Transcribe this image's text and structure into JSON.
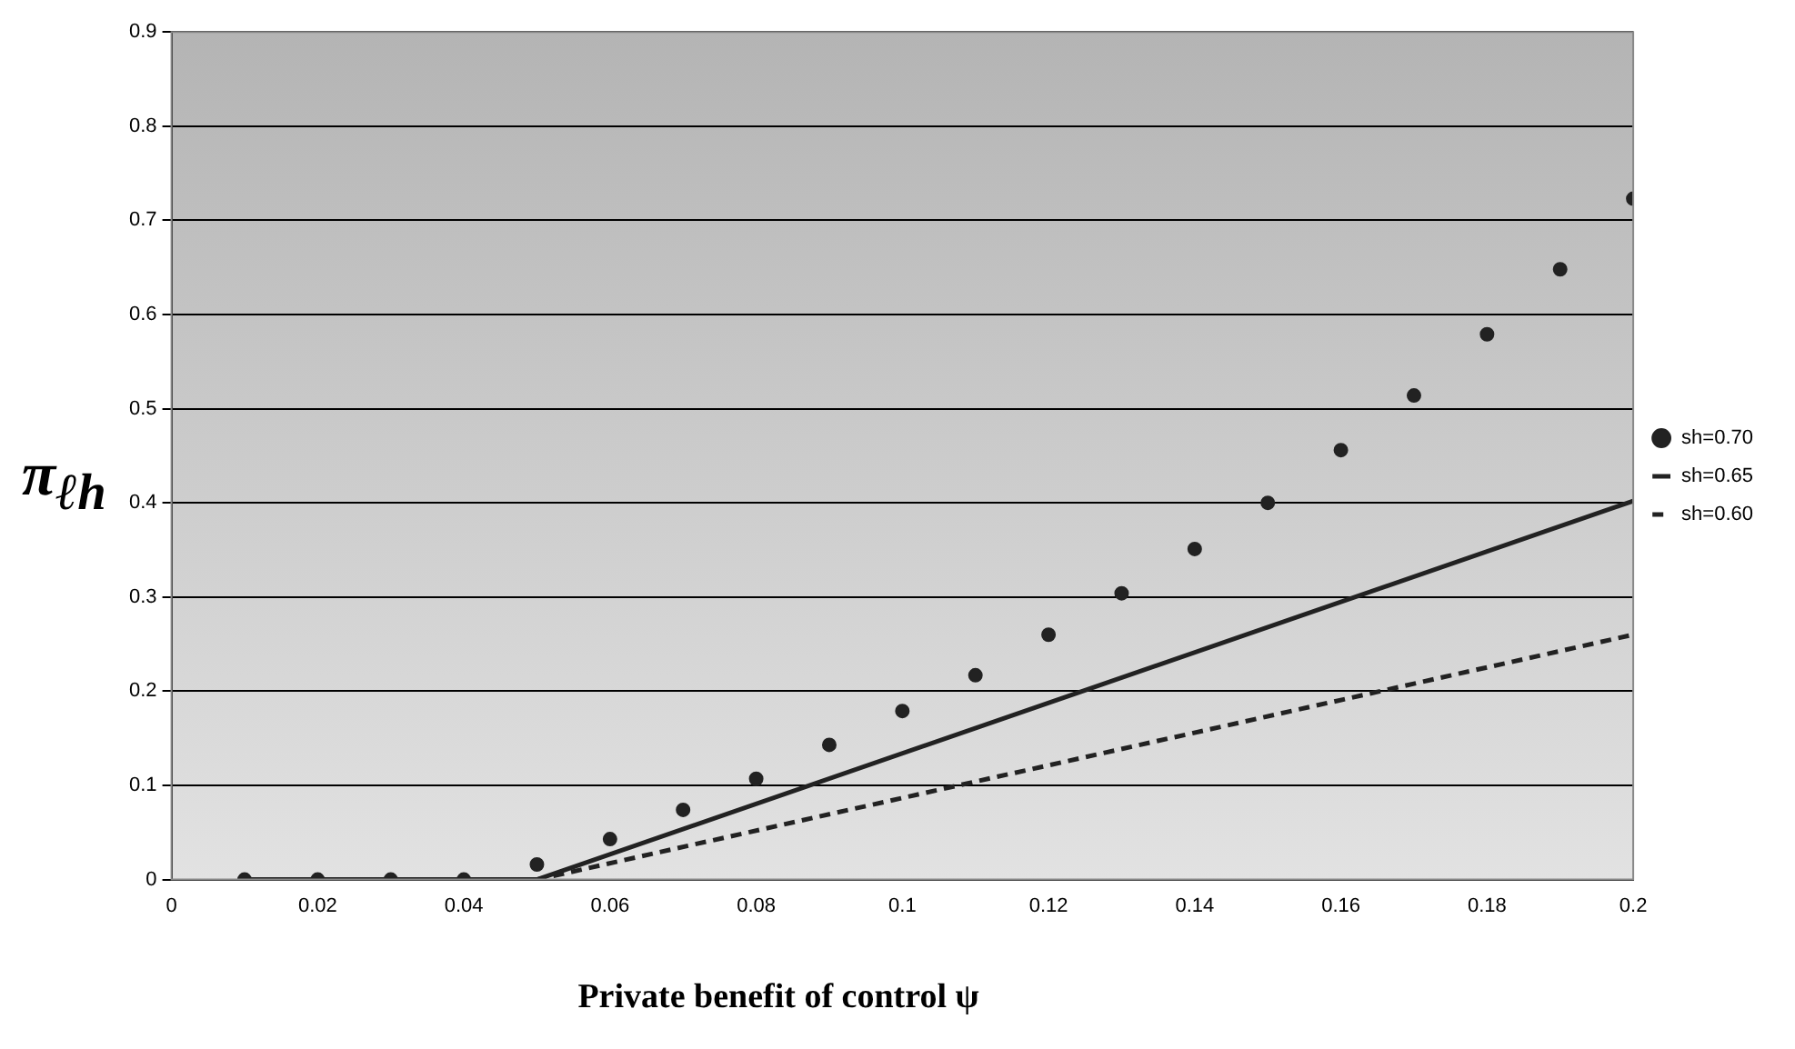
{
  "chart_data": {
    "type": "scatter",
    "xlabel": "Private benefit of control ψ",
    "ylabel": "π$_{ℓh}$",
    "xlim": [
      0,
      0.2
    ],
    "xticks": [
      0,
      0.02,
      0.04,
      0.06,
      0.08,
      0.1,
      0.12,
      0.14,
      0.16,
      0.18,
      0.2
    ],
    "ylim": [
      0,
      0.9
    ],
    "yticks": [
      0,
      0.1,
      0.2,
      0.3,
      0.4,
      0.5,
      0.6,
      0.7,
      0.8,
      0.9
    ],
    "grid": "y",
    "legend": "right",
    "series": [
      {
        "name": "sh=0.70",
        "type": "scatter",
        "marker": "circle",
        "color": "#222222",
        "x": [
          0.01,
          0.02,
          0.03,
          0.04,
          0.05,
          0.06,
          0.07,
          0.08,
          0.09,
          0.1,
          0.11,
          0.12,
          0.13,
          0.14,
          0.15,
          0.16,
          0.17,
          0.18,
          0.19,
          0.2
        ],
        "values": [
          0,
          0,
          0,
          0,
          0.016,
          0.043,
          0.074,
          0.107,
          0.143,
          0.179,
          0.217,
          0.26,
          0.304,
          0.351,
          0.4,
          0.456,
          0.514,
          0.579,
          0.648,
          0.723
        ]
      },
      {
        "name": "sh=0.65",
        "type": "line",
        "marker": "none",
        "line_style": "solid",
        "color": "#222222",
        "x": [
          0.01,
          0.05,
          0.2
        ],
        "values": [
          0,
          0,
          0.402
        ]
      },
      {
        "name": "sh=0.60",
        "type": "line",
        "marker": "none",
        "line_style": "dashed",
        "color": "#222222",
        "x": [
          0.01,
          0.05,
          0.2
        ],
        "values": [
          0,
          0,
          0.26
        ]
      }
    ]
  }
}
